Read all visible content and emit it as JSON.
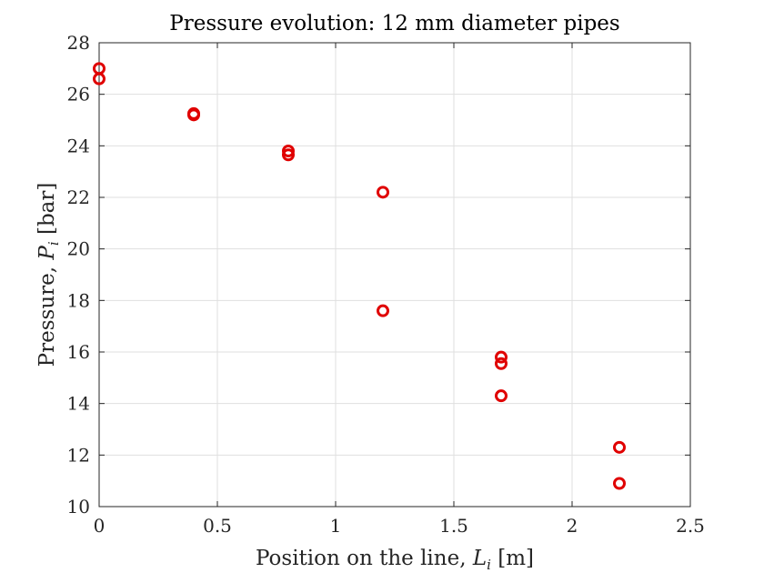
{
  "chart_data": {
    "type": "scatter",
    "title": "Pressure evolution: 12 mm diameter pipes",
    "xlabel": "Position on the line, ",
    "xlabel_var": "L",
    "xlabel_sub": "i",
    "xlabel_unit": " [m]",
    "ylabel": "Pressure, ",
    "ylabel_var": "P",
    "ylabel_sub": "i",
    "ylabel_unit": " [bar]",
    "xlim": [
      0,
      2.5
    ],
    "ylim": [
      10,
      28
    ],
    "xticks": [
      0,
      0.5,
      1,
      1.5,
      2,
      2.5
    ],
    "xtick_labels": [
      "0",
      "0.5",
      "1",
      "1.5",
      "2",
      "2.5"
    ],
    "yticks": [
      10,
      12,
      14,
      16,
      18,
      20,
      22,
      24,
      26,
      28
    ],
    "ytick_labels": [
      "10",
      "12",
      "14",
      "16",
      "18",
      "20",
      "22",
      "24",
      "26",
      "28"
    ],
    "grid": true,
    "marker": "circle-open",
    "color": "#e00000",
    "series": [
      {
        "x": [
          0,
          0,
          0.4,
          0.4,
          0.8,
          0.8,
          1.2,
          1.2,
          1.7,
          1.7,
          1.7,
          2.2,
          2.2
        ],
        "y": [
          27.0,
          26.6,
          25.25,
          25.2,
          23.8,
          23.65,
          22.2,
          17.6,
          15.8,
          15.55,
          14.3,
          12.3,
          10.9
        ]
      }
    ]
  }
}
